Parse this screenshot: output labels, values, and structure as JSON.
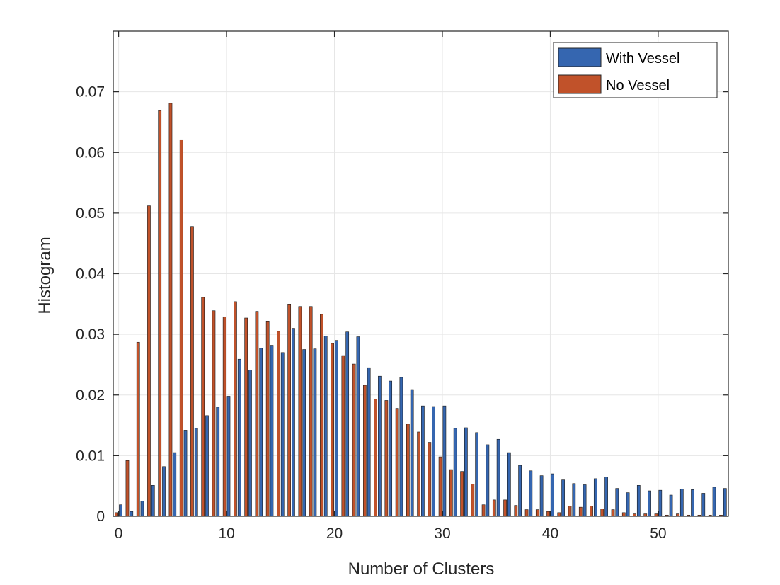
{
  "chart_data": {
    "type": "bar",
    "xlabel": "Number of Clusters",
    "ylabel": "Histogram",
    "xlim": [
      -0.5,
      56.5
    ],
    "ylim": [
      0,
      0.08
    ],
    "x_ticks": [
      0,
      10,
      20,
      30,
      40,
      50
    ],
    "x_tick_labels": [
      "0",
      "10",
      "20",
      "30",
      "40",
      "50"
    ],
    "y_ticks": [
      0,
      0.01,
      0.02,
      0.03,
      0.04,
      0.05,
      0.06,
      0.07
    ],
    "y_tick_labels": [
      "0",
      "0.01",
      "0.02",
      "0.03",
      "0.04",
      "0.05",
      "0.06",
      "0.07"
    ],
    "grid": true,
    "legend_position": "top-right",
    "x": [
      0,
      1,
      2,
      3,
      4,
      5,
      6,
      7,
      8,
      9,
      10,
      11,
      12,
      13,
      14,
      15,
      16,
      17,
      18,
      19,
      20,
      21,
      22,
      23,
      24,
      25,
      26,
      27,
      28,
      29,
      30,
      31,
      32,
      33,
      34,
      35,
      36,
      37,
      38,
      39,
      40,
      41,
      42,
      43,
      44,
      45,
      46,
      47,
      48,
      49,
      50,
      51,
      52,
      53,
      54,
      55,
      56
    ],
    "series": [
      {
        "name": "With Vessel",
        "color": "#3566b0",
        "values": [
          0.0019,
          0.0008,
          0.0025,
          0.0051,
          0.0082,
          0.0105,
          0.0142,
          0.0145,
          0.0166,
          0.018,
          0.0198,
          0.0259,
          0.0241,
          0.0277,
          0.0282,
          0.027,
          0.031,
          0.0275,
          0.0276,
          0.0297,
          0.029,
          0.0304,
          0.0296,
          0.0245,
          0.0231,
          0.0223,
          0.0229,
          0.0209,
          0.0182,
          0.0181,
          0.0182,
          0.0145,
          0.0146,
          0.0138,
          0.0118,
          0.0127,
          0.0105,
          0.0084,
          0.0075,
          0.0067,
          0.007,
          0.006,
          0.0054,
          0.0052,
          0.0062,
          0.0065,
          0.0046,
          0.0039,
          0.0051,
          0.0042,
          0.0043,
          0.0035,
          0.0045,
          0.0044,
          0.0038,
          0.0048,
          0.0046
        ]
      },
      {
        "name": "No Vessel",
        "color": "#c1522a",
        "values": [
          0.0006,
          0.0092,
          0.0287,
          0.0512,
          0.0669,
          0.0681,
          0.0621,
          0.0478,
          0.0361,
          0.0339,
          0.0329,
          0.0354,
          0.0327,
          0.0338,
          0.0322,
          0.0305,
          0.035,
          0.0346,
          0.0346,
          0.0333,
          0.0285,
          0.0265,
          0.0251,
          0.0216,
          0.0193,
          0.0191,
          0.0178,
          0.0152,
          0.0139,
          0.0122,
          0.0098,
          0.0077,
          0.0074,
          0.0053,
          0.0019,
          0.0027,
          0.0027,
          0.0018,
          0.0011,
          0.0011,
          0.0008,
          0.0006,
          0.0017,
          0.0015,
          0.0017,
          0.0012,
          0.0011,
          0.0006,
          0.0004,
          0.0004,
          0.0004,
          0.0002,
          0.0004,
          0.0002,
          0.0002,
          0.0002,
          0.0002
        ]
      }
    ]
  }
}
